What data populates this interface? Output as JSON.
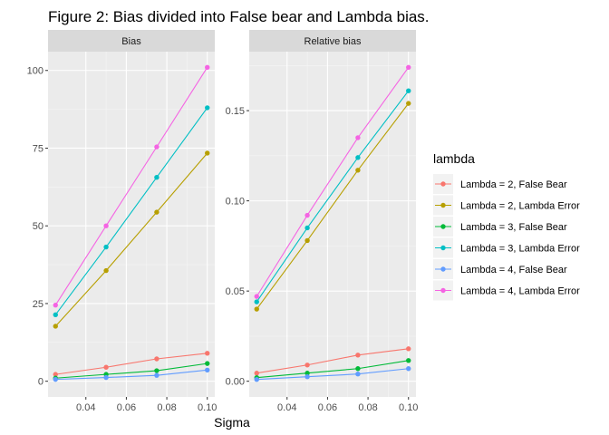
{
  "chart_data": {
    "type": "line",
    "title": "Figure 2: Bias divided into False bear and Lambda bias.",
    "xlabel": "Sigma",
    "ylabel": "",
    "legend": {
      "title": "lambda",
      "placement": "right"
    },
    "x": [
      0.025,
      0.05,
      0.075,
      0.1
    ],
    "xlim": [
      0.0213,
      0.1037
    ],
    "xticks": [
      0.04,
      0.06,
      0.08,
      0.1
    ],
    "xtick_labels": [
      "0.04",
      "0.06",
      "0.08",
      "0.10"
    ],
    "grid": true,
    "series_style": [
      {
        "name": "Lambda = 2, False Bear",
        "color": "#F8766D"
      },
      {
        "name": "Lambda = 2, Lambda Error",
        "color": "#B79F00"
      },
      {
        "name": "Lambda = 3, False Bear",
        "color": "#00BA38"
      },
      {
        "name": "Lambda = 3, Lambda Error",
        "color": "#00BFC4"
      },
      {
        "name": "Lambda = 4, False Bear",
        "color": "#619CFF"
      },
      {
        "name": "Lambda = 4, Lambda Error",
        "color": "#F564E3"
      }
    ],
    "panels": [
      {
        "strip": "Bias",
        "ylim": [
          -5.05,
          106.05
        ],
        "yticks": [
          0,
          25,
          50,
          75,
          100
        ],
        "ytick_labels": [
          "0",
          "25",
          "50",
          "75",
          "100"
        ],
        "series": [
          {
            "name": "Lambda = 2, False Bear",
            "values": [
              2.2,
              4.5,
              7.2,
              9.0
            ]
          },
          {
            "name": "Lambda = 2, Lambda Error",
            "values": [
              17.7,
              35.6,
              54.4,
              73.4
            ]
          },
          {
            "name": "Lambda = 3, False Bear",
            "values": [
              1.0,
              2.2,
              3.4,
              5.7
            ]
          },
          {
            "name": "Lambda = 3, Lambda Error",
            "values": [
              21.4,
              43.2,
              65.6,
              88.0
            ]
          },
          {
            "name": "Lambda = 4, False Bear",
            "values": [
              0.6,
              1.2,
              1.9,
              3.6
            ]
          },
          {
            "name": "Lambda = 4, Lambda Error",
            "values": [
              24.5,
              50.0,
              75.4,
              101.0
            ]
          }
        ]
      },
      {
        "strip": "Relative bias",
        "ylim": [
          -0.0087,
          0.1827
        ],
        "yticks": [
          0.0,
          0.05,
          0.1,
          0.15
        ],
        "ytick_labels": [
          "0.00",
          "0.05",
          "0.10",
          "0.15"
        ],
        "series": [
          {
            "name": "Lambda = 2, False Bear",
            "values": [
              0.0045,
              0.009,
              0.0145,
              0.018
            ]
          },
          {
            "name": "Lambda = 2, Lambda Error",
            "values": [
              0.04,
              0.078,
              0.117,
              0.154
            ]
          },
          {
            "name": "Lambda = 3, False Bear",
            "values": [
              0.002,
              0.0045,
              0.007,
              0.0115
            ]
          },
          {
            "name": "Lambda = 3, Lambda Error",
            "values": [
              0.044,
              0.085,
              0.124,
              0.161
            ]
          },
          {
            "name": "Lambda = 4, False Bear",
            "values": [
              0.001,
              0.0025,
              0.004,
              0.007
            ]
          },
          {
            "name": "Lambda = 4, Lambda Error",
            "values": [
              0.047,
              0.092,
              0.135,
              0.174
            ]
          }
        ]
      }
    ]
  }
}
